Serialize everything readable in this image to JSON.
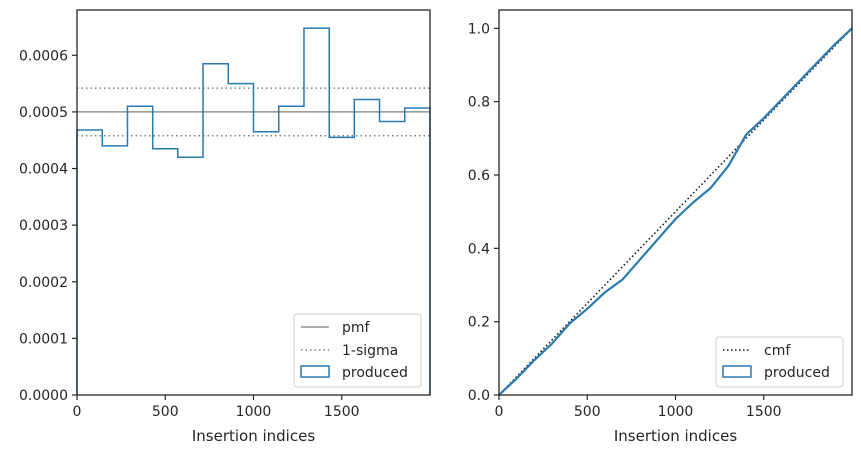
{
  "chart_data": [
    {
      "type": "line",
      "subtype": "step-histogram",
      "title": "",
      "xlabel": "Insertion indices",
      "ylabel": "",
      "xlim": [
        0,
        2000
      ],
      "ylim": [
        0,
        0.00068
      ],
      "xticks": [
        0,
        500,
        1000,
        1500
      ],
      "xtick_labels": [
        "0",
        "500",
        "1000",
        "1500"
      ],
      "yticks": [
        0,
        0.0001,
        0.0002,
        0.0003,
        0.0004,
        0.0005,
        0.0006
      ],
      "ytick_labels": [
        "0.0000",
        "0.0001",
        "0.0002",
        "0.0003",
        "0.0004",
        "0.0005",
        "0.0006"
      ],
      "grid": false,
      "legend_position": "lower-right",
      "legend": [
        "pmf",
        "1-sigma",
        "produced"
      ],
      "pmf": 0.0005,
      "sigma_band": [
        0.000458,
        0.000542
      ],
      "series": [
        {
          "name": "produced",
          "bin_edges": [
            0,
            143,
            286,
            429,
            571,
            714,
            857,
            1000,
            1143,
            1286,
            1429,
            1571,
            1714,
            1857,
            2000
          ],
          "values": [
            0.000468,
            0.00044,
            0.00051,
            0.000435,
            0.00042,
            0.000585,
            0.00055,
            0.000465,
            0.00051,
            0.000648,
            0.000455,
            0.000522,
            0.000483,
            0.000507
          ]
        }
      ],
      "colors": {
        "produced": "#2a7ab0",
        "pmf": "#7f7f7f",
        "sigma": "#7f7f7f"
      }
    },
    {
      "type": "line",
      "title": "",
      "xlabel": "Insertion indices",
      "ylabel": "",
      "xlim": [
        0,
        2000
      ],
      "ylim": [
        0,
        1.05
      ],
      "xticks": [
        0,
        500,
        1000,
        1500
      ],
      "xtick_labels": [
        "0",
        "500",
        "1000",
        "1500"
      ],
      "yticks": [
        0,
        0.2,
        0.4,
        0.6,
        0.8,
        1.0
      ],
      "ytick_labels": [
        "0.0",
        "0.2",
        "0.4",
        "0.6",
        "0.8",
        "1.0"
      ],
      "grid": false,
      "legend_position": "lower-right",
      "legend": [
        "cmf",
        "produced"
      ],
      "series": [
        {
          "name": "cmf",
          "x": [
            0,
            2000
          ],
          "y": [
            0,
            1.0
          ]
        },
        {
          "name": "produced",
          "x": [
            0,
            100,
            200,
            300,
            400,
            500,
            600,
            700,
            800,
            900,
            1000,
            1100,
            1200,
            1300,
            1400,
            1500,
            1600,
            1700,
            1800,
            1900,
            2000
          ],
          "y": [
            0,
            0.045,
            0.095,
            0.14,
            0.195,
            0.235,
            0.28,
            0.315,
            0.37,
            0.425,
            0.48,
            0.525,
            0.565,
            0.625,
            0.71,
            0.755,
            0.805,
            0.855,
            0.905,
            0.955,
            1.0
          ]
        }
      ],
      "colors": {
        "produced": "#2a7ab0",
        "cmf": "#111111"
      }
    }
  ]
}
